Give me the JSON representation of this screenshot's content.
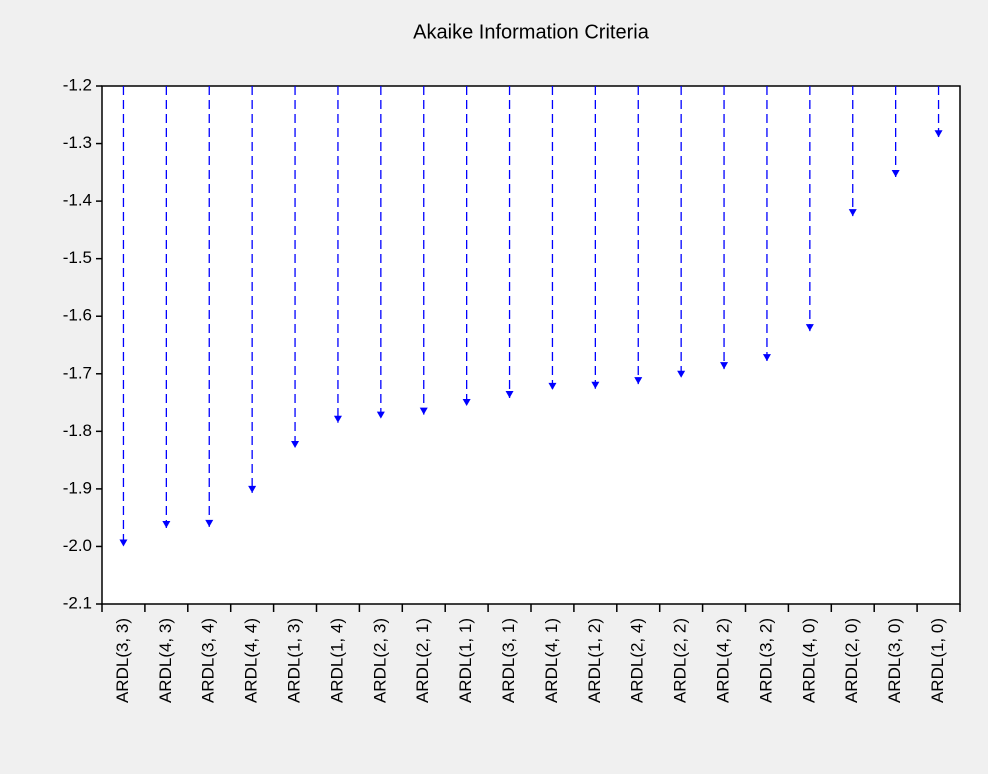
{
  "chart_data": {
    "type": "dropline",
    "title": "Akaike Information Criteria",
    "categories": [
      "ARDL(3, 3)",
      "ARDL(4, 3)",
      "ARDL(3, 4)",
      "ARDL(4, 4)",
      "ARDL(1, 3)",
      "ARDL(1, 4)",
      "ARDL(2, 3)",
      "ARDL(2, 1)",
      "ARDL(1, 1)",
      "ARDL(3, 1)",
      "ARDL(4, 1)",
      "ARDL(1, 2)",
      "ARDL(2, 4)",
      "ARDL(2, 2)",
      "ARDL(4, 2)",
      "ARDL(3, 2)",
      "ARDL(4, 0)",
      "ARDL(2, 0)",
      "ARDL(3, 0)",
      "ARDL(1, 0)"
    ],
    "values": [
      -2.0,
      -1.968,
      -1.966,
      -1.907,
      -1.829,
      -1.785,
      -1.778,
      -1.771,
      -1.756,
      -1.742,
      -1.728,
      -1.726,
      -1.718,
      -1.707,
      -1.692,
      -1.678,
      -1.626,
      -1.426,
      -1.358,
      -1.289
    ],
    "color": "#0000ff",
    "ylim": [
      -2.1,
      -1.2
    ],
    "yticks": [
      -2.1,
      {
        "value": -2,
        "label": "-2.0"
      },
      -1.9,
      -1.8,
      -1.7,
      -1.6,
      -1.5,
      -1.4,
      -1.3,
      -1.2
    ],
    "grid": false
  }
}
